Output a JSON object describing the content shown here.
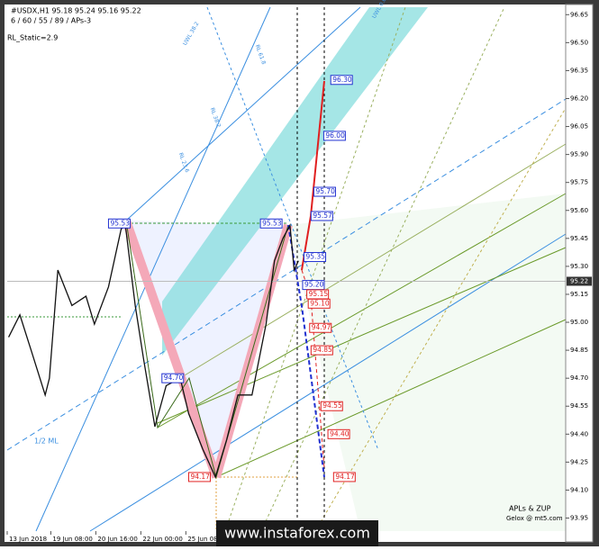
{
  "chart_data": {
    "type": "line",
    "title": "#USDX,H1  95.18 95.24 95.16 95.22",
    "subtitle": "6 / 60 / 55 / 89 / APs-3",
    "annotations": [
      "RL_Static=2.9",
      "1/2 ML",
      "APLs & ZUP",
      "Gelox @ mt5.com",
      "UWL 38.2",
      "RL 61.8",
      "RL 38.2",
      "RL 23.6",
      "UWL 0.0",
      "www.instaforex.com"
    ],
    "series": [
      {
        "name": "USDX close",
        "color": "#111111",
        "x": [
          1,
          9,
          17,
          27,
          30,
          36,
          46,
          56,
          62,
          72,
          81,
          84,
          91,
          97,
          105,
          113,
          123,
          129,
          139,
          148,
          156,
          164,
          174,
          184,
          190,
          196,
          201,
          204,
          207
        ],
        "values": [
          94.92,
          95.04,
          94.85,
          94.61,
          94.7,
          95.28,
          95.09,
          95.14,
          94.99,
          95.19,
          95.5,
          95.52,
          95.09,
          94.8,
          94.44,
          94.66,
          94.7,
          94.51,
          94.32,
          94.17,
          94.37,
          94.61,
          94.61,
          94.99,
          95.33,
          95.45,
          95.52,
          95.28,
          95.33
        ]
      }
    ],
    "price_labels": [
      {
        "x": 72,
        "value": 95.53,
        "label": "95.53",
        "color": "#2030d0"
      },
      {
        "x": 180,
        "value": 95.53,
        "label": "95.53",
        "color": "#2030d0"
      },
      {
        "x": 110,
        "value": 94.7,
        "label": "94.70",
        "color": "#2030d0"
      },
      {
        "x": 129,
        "value": 94.17,
        "label": "94.17",
        "color": "#e02020"
      },
      {
        "x": 230,
        "value": 96.3,
        "label": "96.30",
        "color": "#2030d0"
      },
      {
        "x": 225,
        "value": 96.0,
        "label": "96.00",
        "color": "#2030d0"
      },
      {
        "x": 218,
        "value": 95.7,
        "label": "95.70",
        "color": "#2030d0"
      },
      {
        "x": 216,
        "value": 95.57,
        "label": "95.57",
        "color": "#2030d0"
      },
      {
        "x": 211,
        "value": 95.35,
        "label": "95.35",
        "color": "#2030d0"
      },
      {
        "x": 210,
        "value": 95.2,
        "label": "95.20",
        "color": "#2030d0"
      },
      {
        "x": 213,
        "value": 95.15,
        "label": "95.15",
        "color": "#e02020"
      },
      {
        "x": 214,
        "value": 95.1,
        "label": "95.10",
        "color": "#e02020"
      },
      {
        "x": 215,
        "value": 94.97,
        "label": "94.97",
        "color": "#e02020"
      },
      {
        "x": 216,
        "value": 94.85,
        "label": "94.85",
        "color": "#e02020"
      },
      {
        "x": 223,
        "value": 94.55,
        "label": "94.55",
        "color": "#e02020"
      },
      {
        "x": 228,
        "value": 94.4,
        "label": "94.40",
        "color": "#e02020"
      },
      {
        "x": 232,
        "value": 94.17,
        "label": "94.17",
        "color": "#e02020"
      }
    ],
    "last_price": {
      "value": 95.22,
      "label": "95.22"
    },
    "xlim": [
      0,
      397
    ],
    "xticks": [
      {
        "value": 0,
        "label": "13 Jun 2018"
      },
      {
        "value": 31,
        "label": "19 Jun 08:00"
      },
      {
        "value": 63,
        "label": "20 Jun 16:00"
      },
      {
        "value": 95,
        "label": "22 Jun 00:00"
      },
      {
        "value": 127,
        "label": "25 Jun 08:00"
      }
    ],
    "ylim": [
      93.88,
      96.69
    ],
    "yticks": [
      {
        "value": 96.65,
        "label": "96.65"
      },
      {
        "value": 96.5,
        "label": "96.50"
      },
      {
        "value": 96.35,
        "label": "96.35"
      },
      {
        "value": 96.2,
        "label": "96.20"
      },
      {
        "value": 96.05,
        "label": "96.05"
      },
      {
        "value": 95.9,
        "label": "95.90"
      },
      {
        "value": 95.75,
        "label": "95.75"
      },
      {
        "value": 95.6,
        "label": "95.60"
      },
      {
        "value": 95.45,
        "label": "95.45"
      },
      {
        "value": 95.3,
        "label": "95.30"
      },
      {
        "value": 95.15,
        "label": "95.15"
      },
      {
        "value": 95,
        "label": "95.00"
      },
      {
        "value": 94.85,
        "label": "94.85"
      },
      {
        "value": 94.7,
        "label": "94.70"
      },
      {
        "value": 94.55,
        "label": "94.55"
      },
      {
        "value": 94.4,
        "label": "94.40"
      },
      {
        "value": 94.25,
        "label": "94.25"
      },
      {
        "value": 94.1,
        "label": "94.10"
      },
      {
        "value": 93.95,
        "label": "93.95"
      }
    ]
  }
}
